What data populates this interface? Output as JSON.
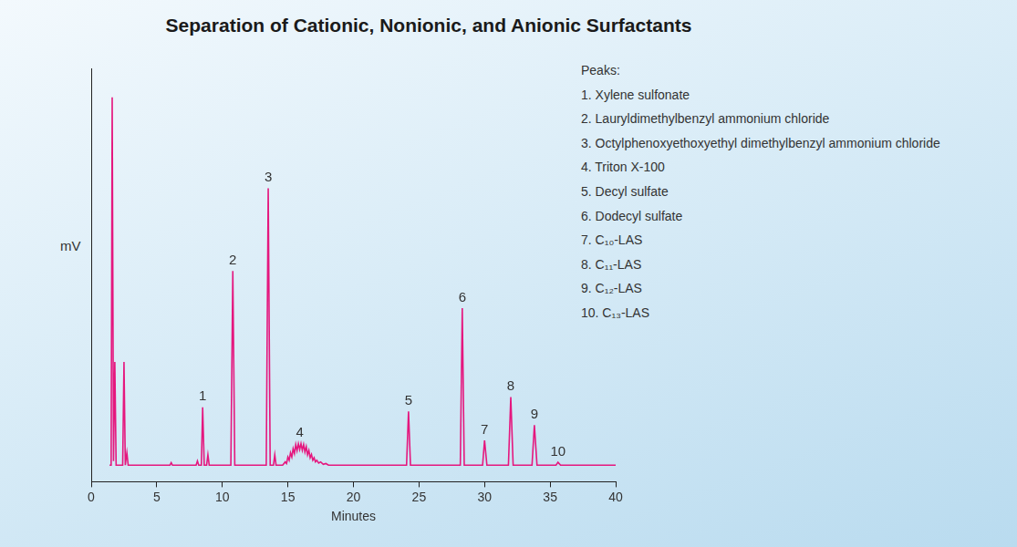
{
  "chart_data": {
    "type": "line",
    "title": "Separation of Cationic, Nonionic, and Anionic Surfactants",
    "x_label": "Minutes",
    "y_label": "mV",
    "color": "#e5177e",
    "xlim": [
      0,
      40
    ],
    "xticks": [
      0,
      5,
      10,
      15,
      20,
      25,
      30,
      35,
      40
    ],
    "ylim": [
      0,
      100
    ],
    "grid": false,
    "tick_labels": "x",
    "x": [
      1.4,
      1.52,
      1.6,
      1.7,
      1.8,
      1.9,
      2.4,
      2.5,
      2.6,
      2.72,
      2.82,
      6.0,
      6.1,
      6.2,
      8.0,
      8.1,
      8.2,
      8.4,
      8.5,
      8.62,
      8.8,
      8.9,
      9.0,
      10.65,
      10.8,
      10.95,
      13.35,
      13.5,
      13.65,
      13.9,
      14.0,
      14.1,
      14.6,
      14.8,
      14.9,
      15.0,
      15.1,
      15.2,
      15.3,
      15.4,
      15.5,
      15.6,
      15.7,
      15.8,
      15.9,
      16.0,
      16.1,
      16.2,
      16.3,
      16.4,
      16.5,
      16.6,
      16.7,
      16.8,
      16.9,
      17.0,
      17.1,
      17.2,
      17.35,
      17.5,
      17.7,
      17.9,
      18.1,
      24.05,
      24.2,
      24.35,
      28.15,
      28.3,
      28.45,
      29.85,
      30.0,
      30.18,
      31.82,
      32.0,
      32.18,
      33.62,
      33.8,
      34.0,
      35.45,
      35.6,
      35.8,
      40
    ],
    "values": [
      4,
      4,
      93,
      5,
      29,
      4,
      4,
      29,
      4,
      7,
      4,
      4,
      4.6,
      4,
      4,
      5,
      4,
      4,
      18,
      4,
      4,
      6.5,
      4,
      4,
      51,
      4,
      4,
      71,
      4,
      4,
      6.5,
      4,
      4,
      4.8,
      4.4,
      6,
      5.2,
      7,
      6,
      8,
      6.8,
      9,
      7.5,
      9.2,
      7.8,
      9.2,
      7.6,
      9,
      7.2,
      8.5,
      6.5,
      7.6,
      5.8,
      6.6,
      5.2,
      5.8,
      4.8,
      5.2,
      4.5,
      4.8,
      4.2,
      4.4,
      4,
      4,
      17,
      4,
      4,
      42,
      4,
      4,
      10,
      4,
      4,
      20.5,
      4,
      4,
      13.7,
      4,
      4,
      4.7,
      4,
      4
    ],
    "peak_labels": [
      {
        "text": "1",
        "x": 8.5,
        "y": 18
      },
      {
        "text": "2",
        "x": 10.8,
        "y": 51
      },
      {
        "text": "3",
        "x": 13.5,
        "y": 71
      },
      {
        "text": "4",
        "x": 15.9,
        "y": 9.2
      },
      {
        "text": "5",
        "x": 24.2,
        "y": 17
      },
      {
        "text": "6",
        "x": 28.3,
        "y": 42
      },
      {
        "text": "7",
        "x": 30.0,
        "y": 10
      },
      {
        "text": "8",
        "x": 32.0,
        "y": 20.5
      },
      {
        "text": "9",
        "x": 33.8,
        "y": 13.7
      },
      {
        "text": "10",
        "x": 35.6,
        "y": 4.7
      }
    ],
    "peak_list": {
      "title": "Peaks:",
      "items": [
        "1. Xylene sulfonate",
        "2. Lauryldimethylbenzyl ammonium chloride",
        "3. Octylphenoxyethoxyethyl dimethylbenzyl ammonium chloride",
        "4. Triton X-100",
        "5. Decyl sulfate",
        "6. Dodecyl sulfate",
        "7. C₁₀-LAS",
        "8. C₁₁-LAS",
        "9. C₁₂-LAS",
        "10. C₁₃-LAS"
      ]
    }
  }
}
